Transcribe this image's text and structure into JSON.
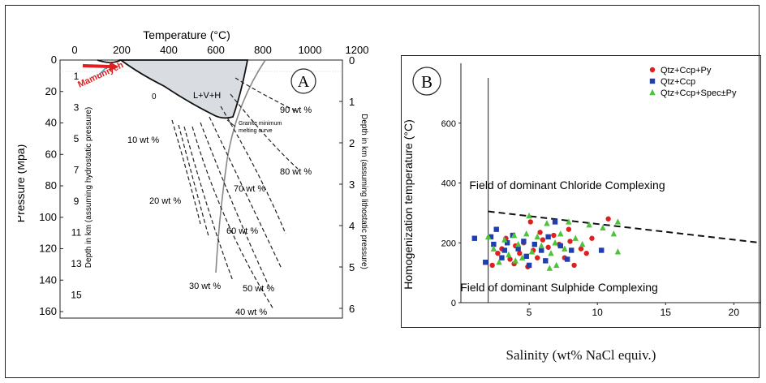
{
  "colors": {
    "red": "#e02020",
    "blue": "#1f3fb0",
    "green": "#4cc33a",
    "panel_border": "#222222",
    "field_fill": "#d9dde2"
  },
  "panelA": {
    "panel_letter": "A",
    "x_axis_title": "Temperature (°C)",
    "x_ticks": [
      "0",
      "200",
      "400",
      "600",
      "800",
      "1000",
      "1200"
    ],
    "y_axis_title": "Pressure (Mpa)",
    "y_ticks": [
      "0",
      "20",
      "40",
      "60",
      "80",
      "100",
      "120",
      "140",
      "160"
    ],
    "left_depth_title": "Depth in km (assuming hydrostatic pressure)",
    "left_depth_ticks": [
      "1",
      "3",
      "5",
      "7",
      "9",
      "11",
      "13",
      "15"
    ],
    "right_depth_title": "Depth in km (assuming lithostatic pressure)",
    "right_depth_ticks": [
      "0",
      "1",
      "2",
      "3",
      "4",
      "5",
      "6"
    ],
    "field_label": "L+V+H",
    "field_zero": "0",
    "mamuniyeh": "Mamuniyeh",
    "granite_line1": "Granite minimum",
    "granite_line2": "melting curve",
    "isopleths": [
      "90 wt %",
      "80 wt %",
      "70 wt %",
      "60 wt %",
      "50 wt %",
      "40 wt %",
      "30 wt %",
      "20 wt %",
      "10 wt %"
    ]
  },
  "chart_data": {
    "type": "scatter",
    "panel_letter": "B",
    "xlabel": "Salinity (wt% NaCl equiv.)",
    "ylabel": "Homogenization temperature (°C)",
    "xlim": [
      0,
      22
    ],
    "ylim": [
      0,
      800
    ],
    "x_ticks": [
      "5",
      "10",
      "15",
      "20"
    ],
    "y_ticks": [
      "0",
      "200",
      "400",
      "600"
    ],
    "annotations": [
      "Field of dominant Chloride Complexing",
      "Field of dominant Sulphide Complexing"
    ],
    "boundary_line": {
      "x": [
        2,
        22
      ],
      "y": [
        305,
        200
      ],
      "style": "dashed"
    },
    "legend_position": "top-right",
    "series": [
      {
        "name": "Qtz+Ccp+Py",
        "marker": "circle",
        "color": "#e02020",
        "points": [
          [
            2.3,
            125
          ],
          [
            2.7,
            165
          ],
          [
            3.0,
            180
          ],
          [
            3.3,
            215
          ],
          [
            3.6,
            145
          ],
          [
            4.0,
            190
          ],
          [
            4.3,
            165
          ],
          [
            4.6,
            200
          ],
          [
            4.9,
            120
          ],
          [
            5.1,
            270
          ],
          [
            5.3,
            175
          ],
          [
            5.6,
            150
          ],
          [
            6.0,
            210
          ],
          [
            6.4,
            185
          ],
          [
            6.8,
            225
          ],
          [
            7.2,
            195
          ],
          [
            7.6,
            150
          ],
          [
            8.0,
            205
          ],
          [
            8.3,
            125
          ],
          [
            8.8,
            180
          ],
          [
            9.2,
            165
          ],
          [
            9.6,
            215
          ],
          [
            10.8,
            280
          ],
          [
            3.9,
            130
          ],
          [
            5.8,
            235
          ],
          [
            7.9,
            245
          ]
        ]
      },
      {
        "name": "Qtz+Ccp",
        "marker": "square",
        "color": "#1f3fb0",
        "points": [
          [
            1.0,
            215
          ],
          [
            1.8,
            135
          ],
          [
            2.2,
            220
          ],
          [
            2.6,
            245
          ],
          [
            3.0,
            150
          ],
          [
            3.4,
            200
          ],
          [
            3.8,
            225
          ],
          [
            4.2,
            180
          ],
          [
            4.6,
            205
          ],
          [
            5.0,
            125
          ],
          [
            5.4,
            195
          ],
          [
            5.9,
            175
          ],
          [
            6.4,
            220
          ],
          [
            6.9,
            270
          ],
          [
            7.3,
            190
          ],
          [
            7.8,
            145
          ],
          [
            8.1,
            175
          ],
          [
            10.3,
            175
          ],
          [
            3.2,
            175
          ],
          [
            4.8,
            155
          ],
          [
            6.2,
            140
          ],
          [
            2.4,
            195
          ]
        ]
      },
      {
        "name": "Qtz+Ccp+Spec±Py",
        "marker": "triangle",
        "color": "#4cc33a",
        "points": [
          [
            2.0,
            220
          ],
          [
            2.4,
            180
          ],
          [
            2.8,
            135
          ],
          [
            3.2,
            210
          ],
          [
            3.5,
            160
          ],
          [
            3.9,
            225
          ],
          [
            4.2,
            195
          ],
          [
            4.5,
            150
          ],
          [
            4.8,
            230
          ],
          [
            5.0,
            290
          ],
          [
            5.2,
            170
          ],
          [
            5.6,
            220
          ],
          [
            5.9,
            190
          ],
          [
            6.3,
            265
          ],
          [
            6.6,
            165
          ],
          [
            6.9,
            200
          ],
          [
            7.3,
            230
          ],
          [
            7.6,
            180
          ],
          [
            7.9,
            270
          ],
          [
            8.4,
            215
          ],
          [
            8.9,
            195
          ],
          [
            9.4,
            260
          ],
          [
            10.4,
            250
          ],
          [
            11.2,
            230
          ],
          [
            11.5,
            170
          ],
          [
            11.5,
            270
          ],
          [
            4.0,
            140
          ],
          [
            6.5,
            115
          ],
          [
            7.0,
            125
          ]
        ]
      }
    ]
  }
}
